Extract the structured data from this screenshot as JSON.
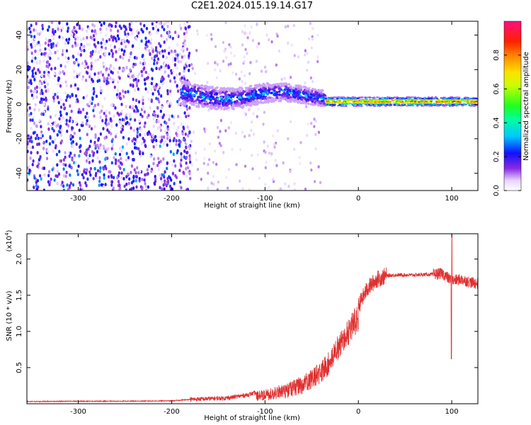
{
  "title": "C2E1.2024.015.19.14.G17",
  "chart_data": [
    {
      "type": "heatmap",
      "xlabel": "Height of straight line (km)",
      "ylabel": "Frequency (Hz)",
      "xlim": [
        -355,
        128
      ],
      "ylim": [
        -50,
        48
      ],
      "xticks": [
        -300,
        -200,
        -100,
        0,
        100
      ],
      "xtick_labels": [
        "-300",
        "-200",
        "-100",
        "0",
        "100"
      ],
      "yticks": [
        -40,
        -20,
        0,
        20,
        40
      ],
      "ytick_labels": [
        "-40",
        "-20",
        "0",
        "20",
        "40"
      ],
      "colorbar": {
        "label": "Normalized spectral amplitude",
        "range": [
          0,
          1
        ],
        "ticks": [
          0.0,
          0.2,
          0.4,
          0.6,
          0.8
        ],
        "tick_labels": [
          "0.0",
          "0.2",
          "0.4",
          "0.6",
          "0.8"
        ]
      },
      "regions": [
        {
          "x_range": [
            -355,
            -190
          ],
          "freq_range": [
            -50,
            48
          ],
          "description": "scattered broadband noise, amplitude ~0.05-0.2"
        },
        {
          "x_range": [
            -190,
            -35
          ],
          "freq_center": 5,
          "freq_halfwidth": 7,
          "peak_amplitude": 0.35
        },
        {
          "x_range": [
            -35,
            128
          ],
          "freq_center": 1.5,
          "freq_halfwidth": 1.5,
          "peak_amplitude": 0.95
        }
      ],
      "grid": false
    },
    {
      "type": "line",
      "xlabel": "Height of straight line (km)",
      "ylabel": "SNR (10 * v/v)",
      "multiplier_label": "(x10",
      "multiplier_exp": "4",
      "xlim": [
        -355,
        128
      ],
      "ylim": [
        0,
        2.35
      ],
      "xticks": [
        -300,
        -200,
        -100,
        0,
        100
      ],
      "xtick_labels": [
        "-300",
        "-200",
        "-100",
        "0",
        "100"
      ],
      "yticks": [
        0.5,
        1.0,
        1.5,
        2.0
      ],
      "ytick_labels": [
        "0.5",
        "1.0",
        "1.5",
        "2.0"
      ],
      "series_color": "#e03030",
      "x": [
        -355,
        -300,
        -250,
        -200,
        -180,
        -160,
        -140,
        -120,
        -100,
        -80,
        -60,
        -40,
        -30,
        -20,
        -10,
        0,
        10,
        20,
        30,
        40,
        60,
        80,
        90,
        100,
        110,
        120,
        128
      ],
      "values": [
        0.03,
        0.035,
        0.035,
        0.04,
        0.06,
        0.07,
        0.08,
        0.12,
        0.18,
        0.25,
        0.35,
        0.55,
        0.7,
        0.95,
        1.15,
        1.35,
        1.6,
        1.72,
        1.77,
        1.78,
        1.78,
        1.79,
        1.8,
        1.7,
        1.72,
        1.68,
        1.66
      ],
      "grid": false
    }
  ]
}
